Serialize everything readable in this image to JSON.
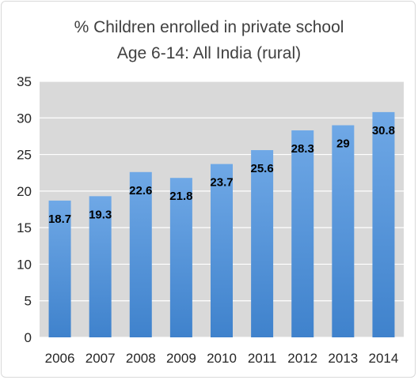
{
  "chart_data": {
    "type": "bar",
    "title": "% Children enrolled in private school",
    "subtitle": "Age 6-14: All India (rural)",
    "categories": [
      "2006",
      "2007",
      "2008",
      "2009",
      "2010",
      "2011",
      "2012",
      "2013",
      "2014"
    ],
    "values": [
      18.7,
      19.3,
      22.6,
      21.8,
      23.7,
      25.6,
      28.3,
      29,
      30.8
    ],
    "data_labels": [
      "18.7",
      "19.3",
      "22.6",
      "21.8",
      "23.7",
      "25.6",
      "28.3",
      "29",
      "30.8"
    ],
    "y_ticks": [
      "0",
      "5",
      "10",
      "15",
      "20",
      "25",
      "30",
      "35"
    ],
    "ylim": [
      0,
      35
    ],
    "xlabel": "",
    "ylabel": "",
    "grid": true,
    "legend": "none",
    "colors": {
      "plot_background": "#d9d9d9",
      "gridline": "#ffffff",
      "bar_top": "#6fa8e6",
      "bar_bottom": "#3f82cc"
    }
  }
}
